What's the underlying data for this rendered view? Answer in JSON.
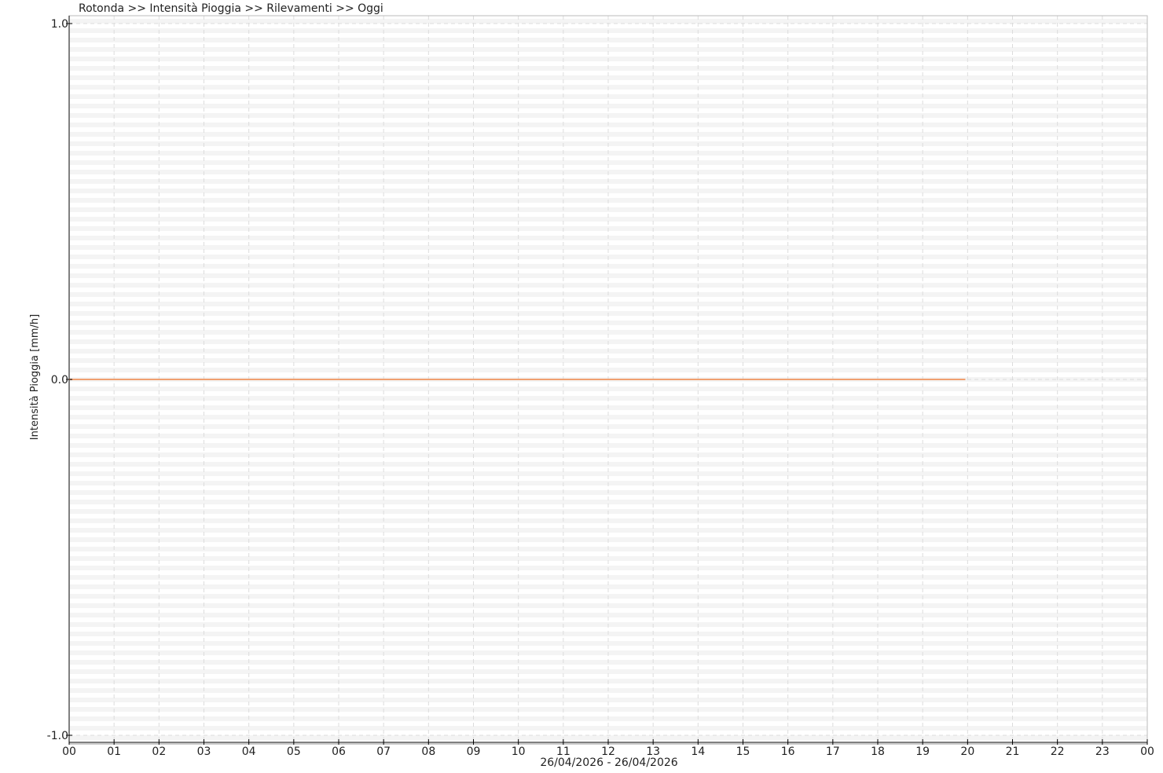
{
  "chart_data": {
    "type": "line",
    "title": "Rotonda >> Intensità Pioggia >> Rilevamenti >> Oggi",
    "ylabel": "Intensità Pioggia [mm/h]",
    "xlabel": "26/04/2026 - 26/04/2026",
    "ylim": [
      -1.0,
      1.0
    ],
    "yticks": [
      "1.0",
      "0.0",
      "-1.0"
    ],
    "xticks": [
      "00",
      "01",
      "02",
      "03",
      "04",
      "05",
      "06",
      "07",
      "08",
      "09",
      "10",
      "11",
      "12",
      "13",
      "14",
      "15",
      "16",
      "17",
      "18",
      "19",
      "20",
      "21",
      "22",
      "23",
      "00"
    ],
    "xlim_hours": [
      0,
      24
    ],
    "grid": true,
    "series": [
      {
        "color": "#f0a070",
        "x_hours": [
          0,
          19.95
        ],
        "values": [
          0.0,
          0.0
        ]
      }
    ]
  }
}
